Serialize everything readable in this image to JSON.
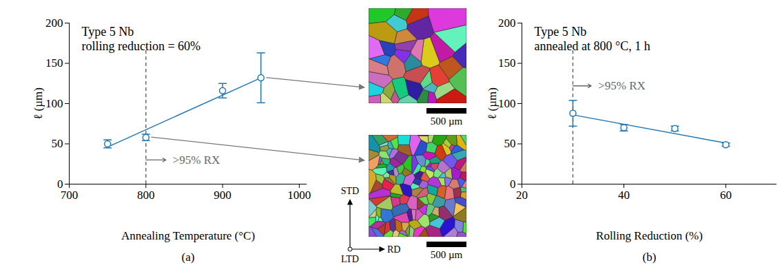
{
  "chart_data": [
    {
      "type": "scatter",
      "panel_label": "(a)",
      "annotation_title": [
        "Type 5 Nb",
        "rolling reduction = 60%"
      ],
      "x_label": "Annealing Temperature (°C)",
      "y_label": "ℓ (µm)",
      "x": [
        750,
        800,
        900,
        950
      ],
      "values": [
        50,
        58,
        116,
        132
      ],
      "errors": [
        5,
        4,
        9,
        31
      ],
      "color": "#1f77b4",
      "marker": "open circle",
      "fit_line": {
        "x": [
          750,
          950
        ],
        "values": [
          46,
          132
        ]
      },
      "xlim": [
        700,
        1010
      ],
      "xticks": [
        700,
        800,
        900,
        1000
      ],
      "ylim": [
        0,
        200
      ],
      "yticks": [
        0,
        50,
        100,
        150,
        200
      ],
      "grid": false,
      "vline": {
        "x": 800,
        "y1": 0,
        "y2": 170,
        "line_style": "dashed"
      },
      "annotation": {
        "text": ">95% RX",
        "x": 800,
        "y": 30,
        "arrow_to": 826
      }
    },
    {
      "type": "scatter",
      "panel_label": "(b)",
      "annotation_title": [
        "Type 5 Nb",
        "annealed at 800 °C, 1 h"
      ],
      "x_label": "Rolling Reduction (%)",
      "y_label": "ℓ (µm)",
      "x": [
        30,
        40,
        50,
        60
      ],
      "values": [
        88,
        70,
        69,
        49
      ],
      "errors": [
        16,
        4,
        3,
        2
      ],
      "color": "#1f77b4",
      "marker": "open circle",
      "fit_line": {
        "x": [
          30,
          60
        ],
        "values": [
          86,
          51
        ]
      },
      "xlim": [
        20,
        70
      ],
      "xticks": [
        20,
        40,
        60
      ],
      "ylim": [
        0,
        200
      ],
      "yticks": [
        0,
        50,
        100,
        150,
        200
      ],
      "grid": false,
      "vline": {
        "x": 30,
        "y1": 0,
        "y2": 168,
        "line_style": "dashed"
      },
      "annotation": {
        "text": ">95% RX",
        "x": 30,
        "y": 122,
        "arrow_to": 33.6
      }
    }
  ],
  "micrographs": [
    {
      "scale_bar": "500 µm",
      "from_point": {
        "x": 950,
        "y": 132
      }
    },
    {
      "scale_bar": "500 µm",
      "from_point": {
        "x": 800,
        "y": 58
      }
    }
  ],
  "orientation_axes": {
    "up": "STD",
    "right": "RD",
    "out": "LTD"
  }
}
